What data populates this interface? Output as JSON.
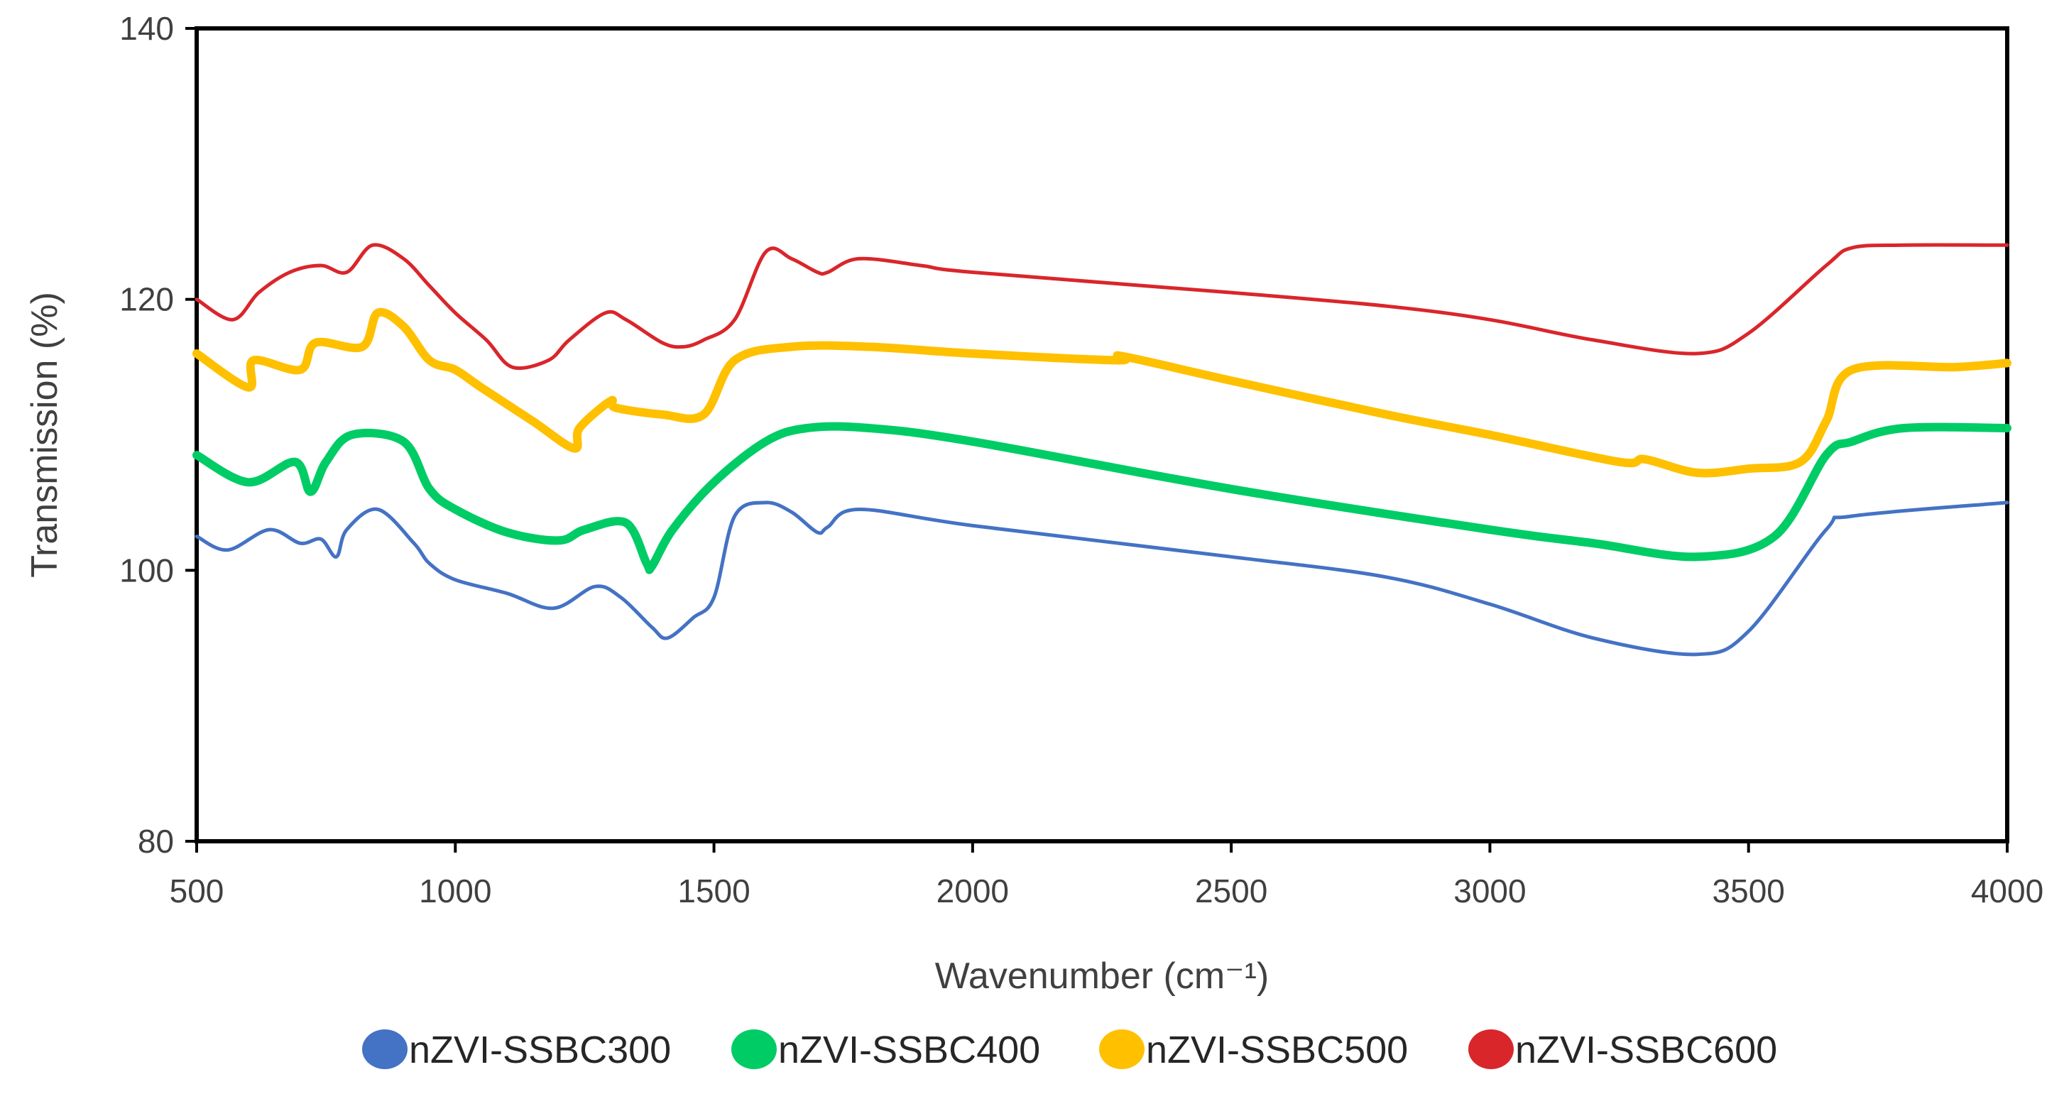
{
  "chart_data": {
    "type": "line",
    "title": "",
    "xlabel": "Wavenumber (cm⁻¹)",
    "ylabel": "Transmission (%)",
    "xlim": [
      500,
      4000
    ],
    "ylim": [
      80,
      140
    ],
    "xticks": [
      500,
      1000,
      1500,
      2000,
      2500,
      3000,
      3500,
      4000
    ],
    "yticks": [
      80,
      100,
      120,
      140
    ],
    "grid": false,
    "legend_position": "bottom",
    "series": [
      {
        "name": "nZVI-SSBC300",
        "color": "#4472C4",
        "x": [
          500,
          560,
          640,
          700,
          740,
          770,
          790,
          850,
          920,
          950,
          1000,
          1100,
          1190,
          1270,
          1320,
          1380,
          1410,
          1460,
          1500,
          1540,
          1600,
          1650,
          1700,
          1720,
          1780,
          2000,
          2500,
          2800,
          3000,
          3200,
          3400,
          3500,
          3650,
          3700,
          4000
        ],
        "y": [
          102.5,
          101.5,
          103,
          102,
          102.3,
          101,
          103,
          104.5,
          102,
          100.5,
          99.3,
          98.3,
          97.2,
          98.8,
          98,
          95.8,
          95,
          96.5,
          98,
          104,
          105,
          104.3,
          102.8,
          103.2,
          104.5,
          103.3,
          101,
          99.5,
          97.5,
          95,
          93.8,
          95.5,
          103,
          104,
          105
        ]
      },
      {
        "name": "nZVI-SSBC400",
        "color": "#00CC66",
        "x": [
          500,
          600,
          690,
          720,
          750,
          800,
          900,
          950,
          1000,
          1100,
          1200,
          1250,
          1330,
          1370,
          1380,
          1420,
          1500,
          1600,
          1680,
          1800,
          2000,
          2500,
          3000,
          3200,
          3400,
          3550,
          3650,
          3700,
          3800,
          4000
        ],
        "y": [
          108.5,
          106.5,
          108,
          105.8,
          108,
          110,
          109.5,
          106,
          104.5,
          102.8,
          102.2,
          103,
          103.5,
          100.5,
          100.3,
          103,
          106.5,
          109.5,
          110.5,
          110.5,
          109.5,
          106,
          103,
          102,
          101,
          102.5,
          108.5,
          109.5,
          110.5,
          110.5
        ]
      },
      {
        "name": "nZVI-SSBC500",
        "color": "#FFC000",
        "x": [
          500,
          600,
          610,
          700,
          730,
          820,
          850,
          900,
          950,
          1000,
          1050,
          1150,
          1230,
          1240,
          1300,
          1310,
          1400,
          1480,
          1540,
          1650,
          1800,
          2000,
          2280,
          2290,
          2500,
          2800,
          3000,
          3250,
          3300,
          3400,
          3500,
          3600,
          3650,
          3700,
          3900,
          4000
        ],
        "y": [
          116,
          113.5,
          115.5,
          114.8,
          116.8,
          116.5,
          119,
          118,
          115.5,
          114.8,
          113.5,
          111,
          109,
          110.5,
          112.5,
          112,
          111.5,
          111.5,
          115.5,
          116.5,
          116.5,
          116,
          115.5,
          115.8,
          114,
          111.5,
          110,
          108,
          108.2,
          107.2,
          107.5,
          108,
          111,
          114.8,
          115,
          115.3
        ]
      },
      {
        "name": "nZVI-SSBC600",
        "color": "#D9262B",
        "x": [
          500,
          570,
          620,
          680,
          740,
          790,
          840,
          900,
          950,
          1000,
          1060,
          1110,
          1180,
          1220,
          1290,
          1330,
          1400,
          1440,
          1480,
          1540,
          1600,
          1650,
          1700,
          1720,
          1780,
          1900,
          2000,
          2500,
          2800,
          3000,
          3200,
          3400,
          3500,
          3650,
          3700,
          3800,
          4000
        ],
        "y": [
          120,
          118.5,
          120.5,
          122,
          122.5,
          122,
          124,
          123,
          121,
          119,
          117,
          115,
          115.5,
          117,
          119,
          118.5,
          116.8,
          116.5,
          117,
          118.5,
          123.5,
          123,
          122,
          122,
          123,
          122.5,
          122,
          120.5,
          119.5,
          118.5,
          117,
          116,
          117.5,
          122.5,
          123.8,
          124,
          124
        ]
      }
    ]
  }
}
